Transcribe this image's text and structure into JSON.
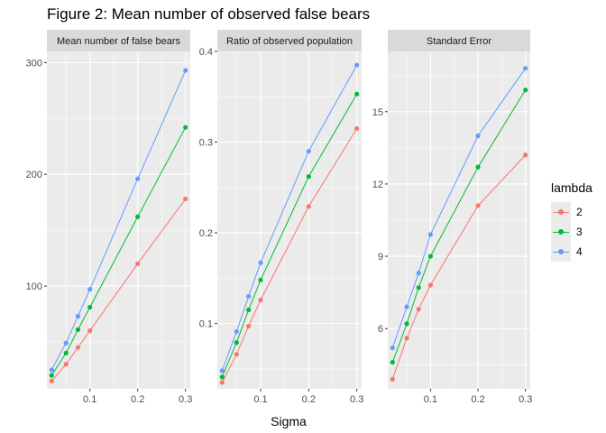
{
  "title": "Figure 2: Mean number of observed false bears",
  "legend": {
    "title": "lambda",
    "items": [
      {
        "label": "2",
        "color": "#F8766D"
      },
      {
        "label": "3",
        "color": "#00BA38"
      },
      {
        "label": "4",
        "color": "#619CFF"
      }
    ]
  },
  "chart_data": [
    {
      "type": "line",
      "title": "Mean number of false bears",
      "xlabel": "Sigma",
      "ylabel": "",
      "x": [
        0.02,
        0.05,
        0.075,
        0.1,
        0.2,
        0.3
      ],
      "xlim": [
        0.01,
        0.31
      ],
      "ylim": [
        8,
        310
      ],
      "xticks": [
        0.1,
        0.2,
        0.3
      ],
      "xtick_labels": [
        "0.1",
        "0.2",
        "0.3"
      ],
      "yticks": [
        100,
        200,
        300
      ],
      "ytick_labels": [
        "100",
        "200",
        "300"
      ],
      "grid": true,
      "series": [
        {
          "name": "2",
          "values": [
            15,
            30,
            45,
            60,
            120,
            178
          ]
        },
        {
          "name": "3",
          "values": [
            20,
            40,
            61,
            81,
            162,
            242
          ]
        },
        {
          "name": "4",
          "values": [
            25,
            49,
            73,
            97,
            196,
            293
          ]
        }
      ]
    },
    {
      "type": "line",
      "title": "Ratio of observed population",
      "xlabel": "Sigma",
      "ylabel": "",
      "x": [
        0.02,
        0.05,
        0.075,
        0.1,
        0.2,
        0.3
      ],
      "xlim": [
        0.01,
        0.31
      ],
      "ylim": [
        0.028,
        0.4
      ],
      "xticks": [
        0.1,
        0.2,
        0.3
      ],
      "xtick_labels": [
        "0.1",
        "0.2",
        "0.3"
      ],
      "yticks": [
        0.1,
        0.2,
        0.3,
        0.4
      ],
      "ytick_labels": [
        "0.1",
        "0.2",
        "0.3",
        "0.4"
      ],
      "grid": true,
      "series": [
        {
          "name": "2",
          "values": [
            0.035,
            0.066,
            0.097,
            0.126,
            0.229,
            0.315
          ]
        },
        {
          "name": "3",
          "values": [
            0.041,
            0.079,
            0.115,
            0.148,
            0.262,
            0.353
          ]
        },
        {
          "name": "4",
          "values": [
            0.048,
            0.091,
            0.13,
            0.167,
            0.29,
            0.385
          ]
        }
      ]
    },
    {
      "type": "line",
      "title": "Standard Error",
      "xlabel": "Sigma",
      "ylabel": "",
      "x": [
        0.02,
        0.05,
        0.075,
        0.1,
        0.2,
        0.3
      ],
      "xlim": [
        0.01,
        0.31
      ],
      "ylim": [
        3.5,
        17.5
      ],
      "xticks": [
        0.1,
        0.2,
        0.3
      ],
      "xtick_labels": [
        "0.1",
        "0.2",
        "0.3"
      ],
      "yticks": [
        6,
        9,
        12,
        15
      ],
      "ytick_labels": [
        "6",
        "9",
        "12",
        "15"
      ],
      "grid": true,
      "series": [
        {
          "name": "2",
          "values": [
            3.9,
            5.6,
            6.8,
            7.8,
            11.1,
            13.2
          ]
        },
        {
          "name": "3",
          "values": [
            4.6,
            6.2,
            7.7,
            9.0,
            12.7,
            15.9
          ]
        },
        {
          "name": "4",
          "values": [
            5.2,
            6.9,
            8.3,
            9.9,
            14.0,
            16.8
          ]
        }
      ]
    }
  ]
}
